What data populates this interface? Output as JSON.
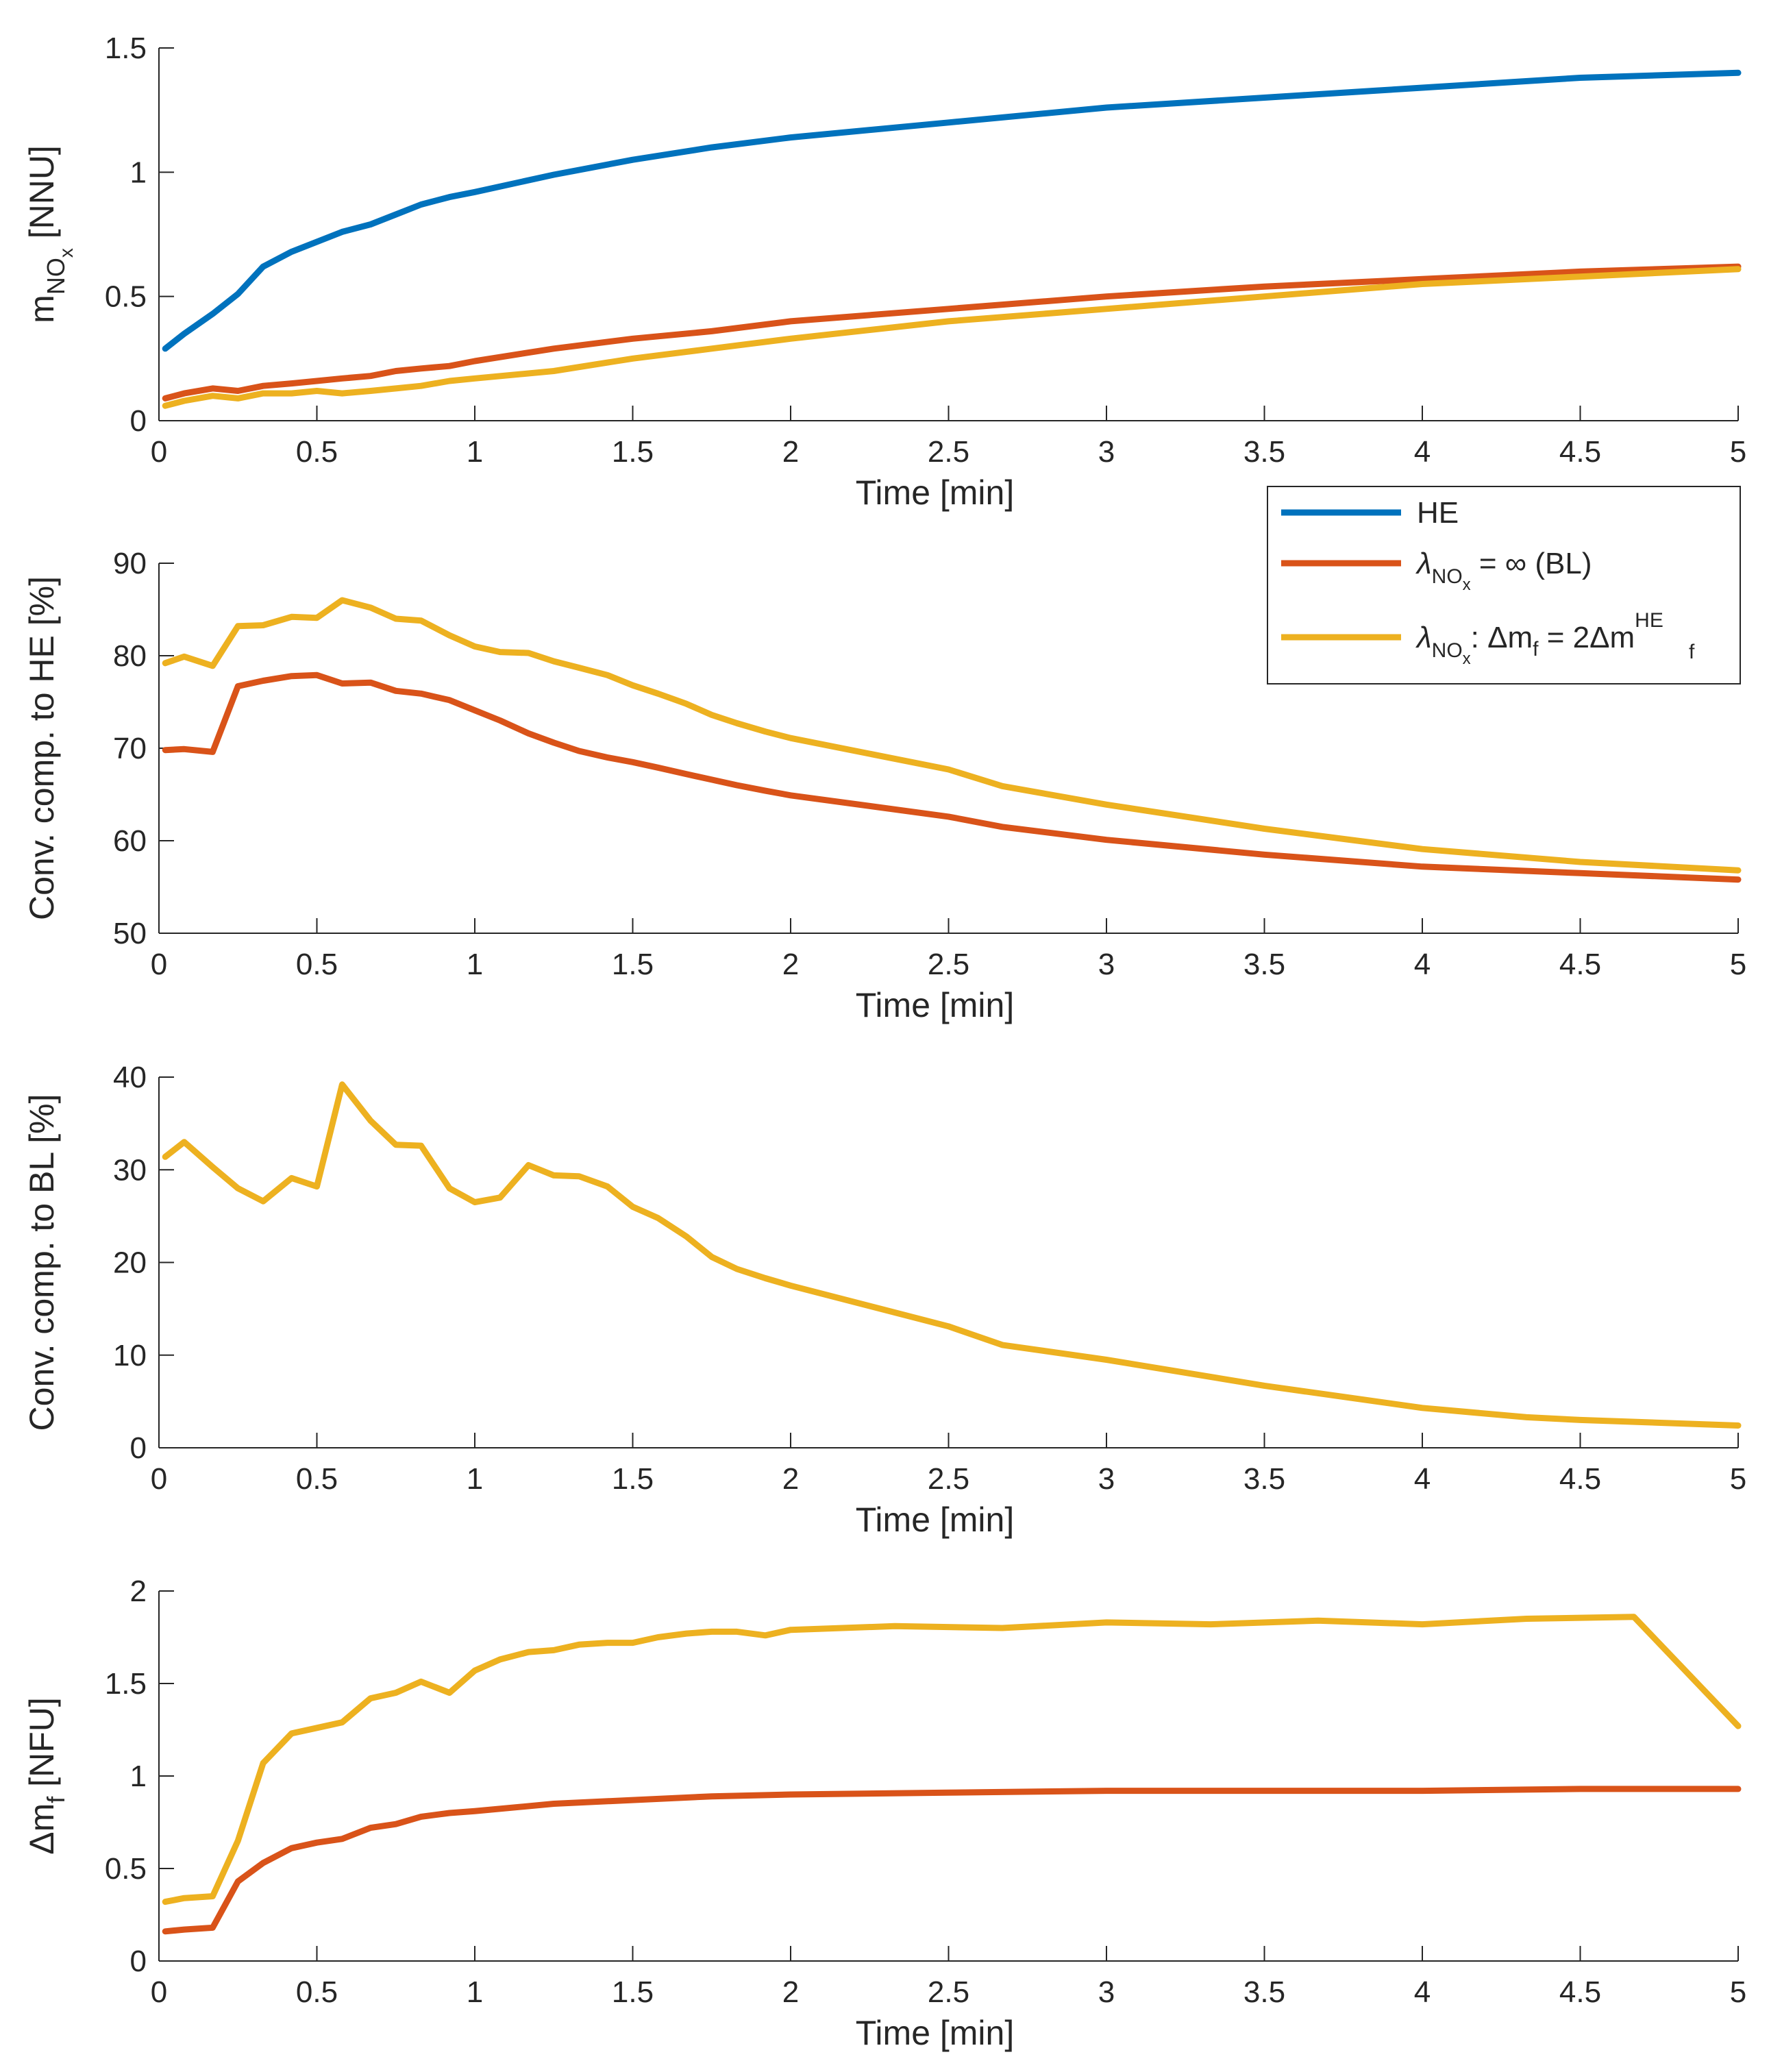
{
  "chart_data": [
    {
      "type": "line",
      "title": "",
      "xlabel": "Time [min]",
      "ylabel": "m NO x [NNU]",
      "ylabel_parts": {
        "main": "m",
        "sub": "NO",
        "subsub": "x",
        "unit": " [NNU]"
      },
      "xlim": [
        0,
        5
      ],
      "ylim": [
        0,
        1.5
      ],
      "xticks": [
        0,
        0.5,
        1,
        1.5,
        2,
        2.5,
        3,
        3.5,
        4,
        4.5,
        5
      ],
      "xtick_labels": [
        "0",
        "0.5",
        "1",
        "1.5",
        "2",
        "2.5",
        "3",
        "3.5",
        "4",
        "4.5",
        "5"
      ],
      "yticks": [
        0,
        0.5,
        1,
        1.5
      ],
      "ytick_labels": [
        "0",
        "0.5",
        "1",
        "1.5"
      ],
      "series": [
        {
          "name": "HE",
          "color": "#0072BD",
          "x": [
            0.02,
            0.08,
            0.17,
            0.25,
            0.33,
            0.42,
            0.5,
            0.58,
            0.67,
            0.75,
            0.83,
            0.92,
            1.0,
            1.25,
            1.5,
            1.75,
            2.0,
            2.5,
            3.0,
            3.5,
            4.0,
            4.5,
            5.0
          ],
          "y": [
            0.29,
            0.35,
            0.43,
            0.51,
            0.62,
            0.68,
            0.72,
            0.76,
            0.79,
            0.83,
            0.87,
            0.9,
            0.92,
            0.99,
            1.05,
            1.1,
            1.14,
            1.2,
            1.26,
            1.3,
            1.34,
            1.38,
            1.4
          ]
        },
        {
          "name": "BL",
          "color": "#D95319",
          "x": [
            0.02,
            0.08,
            0.17,
            0.25,
            0.33,
            0.42,
            0.5,
            0.58,
            0.67,
            0.75,
            0.83,
            0.92,
            1.0,
            1.25,
            1.5,
            1.75,
            2.0,
            2.5,
            3.0,
            3.5,
            4.0,
            4.5,
            5.0
          ],
          "y": [
            0.09,
            0.11,
            0.13,
            0.12,
            0.14,
            0.15,
            0.16,
            0.17,
            0.18,
            0.2,
            0.21,
            0.22,
            0.24,
            0.29,
            0.33,
            0.36,
            0.4,
            0.45,
            0.5,
            0.54,
            0.57,
            0.6,
            0.62
          ]
        },
        {
          "name": "2dm",
          "color": "#EDB120",
          "x": [
            0.02,
            0.08,
            0.17,
            0.25,
            0.33,
            0.42,
            0.5,
            0.58,
            0.67,
            0.75,
            0.83,
            0.92,
            1.0,
            1.25,
            1.5,
            1.75,
            2.0,
            2.5,
            3.0,
            3.5,
            4.0,
            4.5,
            5.0
          ],
          "y": [
            0.06,
            0.08,
            0.1,
            0.09,
            0.11,
            0.11,
            0.12,
            0.11,
            0.12,
            0.13,
            0.14,
            0.16,
            0.17,
            0.2,
            0.25,
            0.29,
            0.33,
            0.4,
            0.45,
            0.5,
            0.55,
            0.58,
            0.61
          ]
        }
      ],
      "legend": {
        "position": "bottom-right",
        "entries": [
          {
            "label": "HE",
            "color": "#0072BD"
          },
          {
            "label_main": "λ",
            "label_sub": "NO",
            "label_subsub": "x",
            "label_rest": " = ∞ (BL)",
            "color": "#D95319"
          },
          {
            "label_main": "λ",
            "label_sub": "NO",
            "label_subsub": "x",
            "label_rest": ": Δm",
            "label_rest_sub": "f",
            "label_rest2": " = 2Δm",
            "label_rest2_sub": "f",
            "label_rest2_sup": "HE",
            "color": "#EDB120"
          }
        ]
      }
    },
    {
      "type": "line",
      "title": "",
      "xlabel": "Time [min]",
      "ylabel": "Conv. comp. to HE [%]",
      "xlim": [
        0,
        5
      ],
      "ylim": [
        50,
        90
      ],
      "xticks": [
        0,
        0.5,
        1,
        1.5,
        2,
        2.5,
        3,
        3.5,
        4,
        4.5,
        5
      ],
      "xtick_labels": [
        "0",
        "0.5",
        "1",
        "1.5",
        "2",
        "2.5",
        "3",
        "3.5",
        "4",
        "4.5",
        "5"
      ],
      "yticks": [
        50,
        60,
        70,
        80,
        90
      ],
      "ytick_labels": [
        "50",
        "60",
        "70",
        "80",
        "90"
      ],
      "series": [
        {
          "name": "BL",
          "color": "#D95319",
          "x": [
            0.02,
            0.08,
            0.17,
            0.25,
            0.33,
            0.42,
            0.5,
            0.58,
            0.67,
            0.75,
            0.83,
            0.92,
            1.0,
            1.08,
            1.17,
            1.25,
            1.33,
            1.42,
            1.5,
            1.58,
            1.67,
            1.75,
            1.83,
            1.92,
            2.0,
            2.5,
            2.67,
            3.0,
            3.5,
            4.0,
            4.5,
            5.0
          ],
          "y": [
            69.8,
            69.9,
            69.6,
            76.7,
            77.3,
            77.8,
            77.9,
            77.0,
            77.1,
            76.2,
            75.9,
            75.2,
            74.1,
            73.0,
            71.6,
            70.6,
            69.7,
            69.0,
            68.5,
            67.9,
            67.2,
            66.6,
            66.0,
            65.4,
            64.9,
            62.6,
            61.5,
            60.1,
            58.5,
            57.2,
            56.5,
            55.8
          ]
        },
        {
          "name": "2dm",
          "color": "#EDB120",
          "x": [
            0.02,
            0.08,
            0.17,
            0.25,
            0.33,
            0.42,
            0.5,
            0.58,
            0.67,
            0.75,
            0.83,
            0.92,
            1.0,
            1.08,
            1.17,
            1.25,
            1.33,
            1.42,
            1.5,
            1.58,
            1.67,
            1.75,
            1.83,
            1.92,
            2.0,
            2.5,
            2.67,
            3.0,
            3.5,
            4.0,
            4.5,
            5.0
          ],
          "y": [
            79.2,
            79.9,
            78.9,
            83.2,
            83.3,
            84.2,
            84.1,
            86.0,
            85.2,
            84.0,
            83.8,
            82.2,
            81.0,
            80.4,
            80.3,
            79.4,
            78.7,
            77.9,
            76.8,
            75.9,
            74.8,
            73.6,
            72.7,
            71.8,
            71.1,
            67.7,
            65.9,
            63.9,
            61.3,
            59.1,
            57.7,
            56.8
          ]
        }
      ]
    },
    {
      "type": "line",
      "title": "",
      "xlabel": "Time [min]",
      "ylabel": "Conv. comp. to BL [%]",
      "xlim": [
        0,
        5
      ],
      "ylim": [
        0,
        40
      ],
      "xticks": [
        0,
        0.5,
        1,
        1.5,
        2,
        2.5,
        3,
        3.5,
        4,
        4.5,
        5
      ],
      "xtick_labels": [
        "0",
        "0.5",
        "1",
        "1.5",
        "2",
        "2.5",
        "3",
        "3.5",
        "4",
        "4.5",
        "5"
      ],
      "yticks": [
        0,
        10,
        20,
        30,
        40
      ],
      "ytick_labels": [
        "0",
        "10",
        "20",
        "30",
        "40"
      ],
      "series": [
        {
          "name": "2dm",
          "color": "#EDB120",
          "x": [
            0.02,
            0.08,
            0.17,
            0.25,
            0.33,
            0.42,
            0.5,
            0.58,
            0.67,
            0.75,
            0.83,
            0.92,
            1.0,
            1.08,
            1.17,
            1.25,
            1.33,
            1.42,
            1.5,
            1.58,
            1.67,
            1.75,
            1.83,
            1.92,
            2.0,
            2.5,
            2.67,
            3.0,
            3.5,
            4.0,
            4.33,
            4.5,
            5.0
          ],
          "y": [
            31.4,
            33.0,
            30.3,
            28.0,
            26.6,
            29.1,
            28.2,
            39.2,
            35.3,
            32.7,
            32.6,
            28.0,
            26.5,
            27.0,
            30.5,
            29.4,
            29.3,
            28.2,
            26.0,
            24.8,
            22.8,
            20.6,
            19.3,
            18.3,
            17.5,
            13.1,
            11.1,
            9.5,
            6.7,
            4.3,
            3.3,
            3.0,
            2.4
          ]
        }
      ]
    },
    {
      "type": "line",
      "title": "",
      "xlabel": "Time [min]",
      "ylabel": "Δm f [NFU]",
      "ylabel_parts": {
        "main": "Δm",
        "sub": "f",
        "unit": " [NFU]"
      },
      "xlim": [
        0,
        5
      ],
      "ylim": [
        0,
        2
      ],
      "xticks": [
        0,
        0.5,
        1,
        1.5,
        2,
        2.5,
        3,
        3.5,
        4,
        4.5,
        5
      ],
      "xtick_labels": [
        "0",
        "0.5",
        "1",
        "1.5",
        "2",
        "2.5",
        "3",
        "3.5",
        "4",
        "4.5",
        "5"
      ],
      "yticks": [
        0,
        0.5,
        1,
        1.5,
        2
      ],
      "ytick_labels": [
        "0",
        "0.5",
        "1",
        "1.5",
        "2"
      ],
      "series": [
        {
          "name": "BL",
          "color": "#D95319",
          "x": [
            0.02,
            0.08,
            0.17,
            0.25,
            0.33,
            0.42,
            0.5,
            0.58,
            0.67,
            0.75,
            0.83,
            0.92,
            1.0,
            1.25,
            1.5,
            1.75,
            2.0,
            2.5,
            3.0,
            3.5,
            4.0,
            4.5,
            5.0
          ],
          "y": [
            0.16,
            0.17,
            0.18,
            0.43,
            0.53,
            0.61,
            0.64,
            0.66,
            0.72,
            0.74,
            0.78,
            0.8,
            0.81,
            0.85,
            0.87,
            0.89,
            0.9,
            0.91,
            0.92,
            0.92,
            0.92,
            0.93,
            0.93
          ]
        },
        {
          "name": "2dm",
          "color": "#EDB120",
          "x": [
            0.02,
            0.08,
            0.17,
            0.25,
            0.33,
            0.42,
            0.5,
            0.58,
            0.67,
            0.75,
            0.83,
            0.92,
            1.0,
            1.08,
            1.17,
            1.25,
            1.33,
            1.42,
            1.5,
            1.58,
            1.67,
            1.75,
            1.83,
            1.92,
            2.0,
            2.33,
            2.67,
            3.0,
            3.33,
            3.67,
            4.0,
            4.33,
            4.67,
            5.0
          ],
          "y": [
            0.32,
            0.34,
            0.35,
            0.65,
            1.07,
            1.23,
            1.26,
            1.29,
            1.42,
            1.45,
            1.51,
            1.45,
            1.57,
            1.63,
            1.67,
            1.68,
            1.71,
            1.72,
            1.72,
            1.75,
            1.77,
            1.78,
            1.78,
            1.76,
            1.79,
            1.81,
            1.8,
            1.83,
            1.82,
            1.84,
            1.82,
            1.85,
            1.86,
            1.27
          ]
        }
      ]
    }
  ]
}
